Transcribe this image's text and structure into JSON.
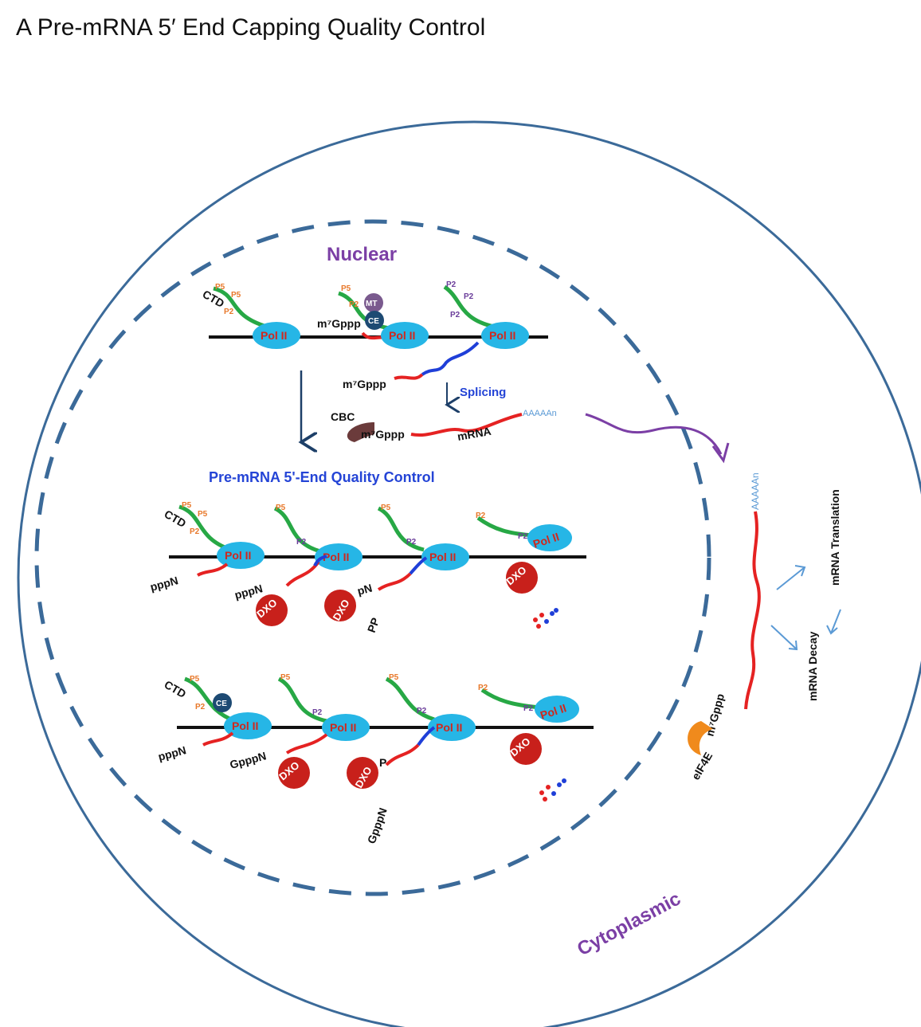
{
  "title": "A Pre-mRNA 5′ End Capping Quality Control",
  "regions": {
    "nuclear": "Nuclear",
    "cytoplasmic": "Cytoplasmic"
  },
  "labels": {
    "pol2": "Pol II",
    "ctd": "CTD",
    "mt": "MT",
    "ce": "CE",
    "m7gppp": "m⁷Gppp",
    "splicing": "Splicing",
    "cbc": "CBC",
    "mrna": "mRNA",
    "polya": "AAAAAn",
    "qc_heading": "Pre-mRNA 5'-End Quality Control",
    "pppn": "pppN",
    "pn": "pN",
    "pp": "PP",
    "gpppn": "GpppN",
    "p": "P",
    "dxo": "DXO",
    "eif4e": "eIF4E",
    "translation": "mRNA Translation",
    "decay": "mRNA Decay",
    "p5": "P5",
    "p2": "P2"
  },
  "colors": {
    "pol2": "#26b6e6",
    "ctd": "#27a845",
    "rna_red": "#e52222",
    "rna_blue": "#1f3fd8",
    "dxo": "#c8201b",
    "mt": "#7a5a8e",
    "ce": "#1d4a73",
    "cbc": "#6b3b3b",
    "eif4e": "#f08a1c",
    "circle": "#3b6a99",
    "arrow_dark": "#1d3f68",
    "arrow_light": "#5b9ad5",
    "purple": "#7b3fa5",
    "heading_blue": "#2444d6"
  }
}
